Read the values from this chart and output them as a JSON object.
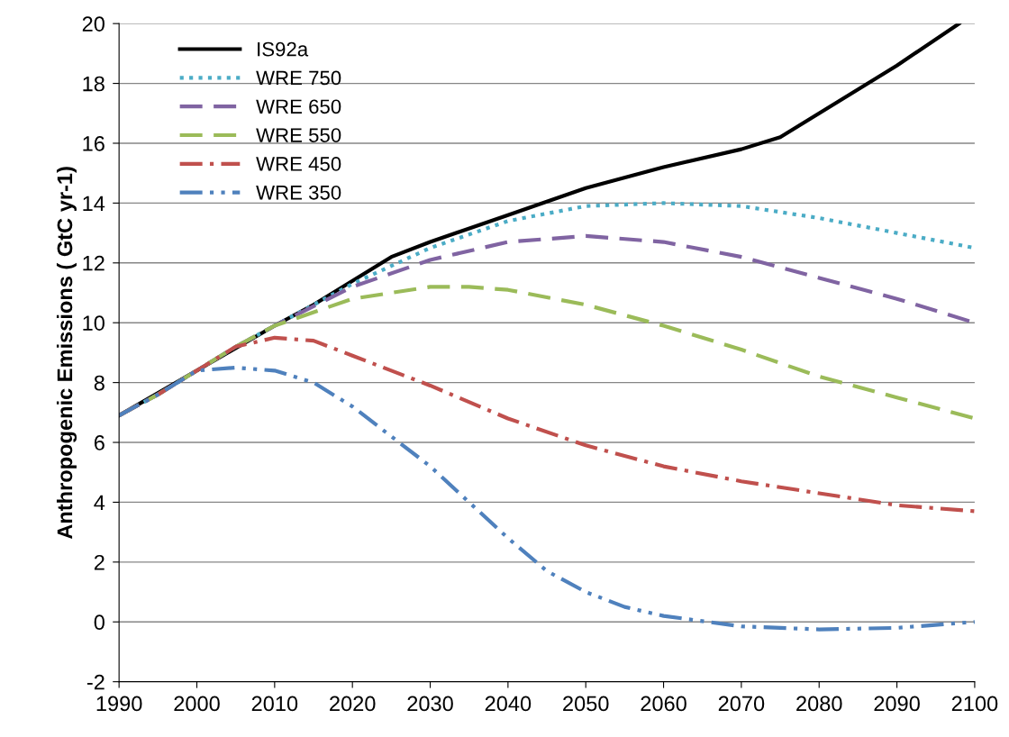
{
  "chart_data": {
    "type": "line",
    "ylabel": "Anthropogenic Emissions ( GtC yr-1)",
    "xlim": [
      1990,
      2100
    ],
    "xticks": [
      1990,
      2000,
      2010,
      2020,
      2030,
      2040,
      2050,
      2060,
      2070,
      2080,
      2090,
      2100
    ],
    "ylim": [
      -2,
      20
    ],
    "yticks": [
      -2,
      0,
      2,
      4,
      6,
      8,
      10,
      12,
      14,
      16,
      18,
      20
    ],
    "grid": "y",
    "legend": "top left",
    "marker": "none",
    "series": [
      {
        "name": "IS92a",
        "color": "#000000",
        "line_style": "solid",
        "x": [
          1990,
          2010,
          2015,
          2020,
          2025,
          2030,
          2040,
          2050,
          2060,
          2070,
          2075,
          2080,
          2090,
          2098
        ],
        "values": [
          6.9,
          9.9,
          10.6,
          11.4,
          12.2,
          12.7,
          13.6,
          14.5,
          15.2,
          15.8,
          16.2,
          17.0,
          18.6,
          20.0
        ]
      },
      {
        "name": "WRE 750",
        "color": "#4bacc6",
        "line_style": "dotted",
        "x": [
          1990,
          1995,
          2000,
          2005,
          2010,
          2020,
          2030,
          2040,
          2050,
          2060,
          2070,
          2080,
          2090,
          2100
        ],
        "values": [
          6.9,
          7.6,
          8.4,
          9.2,
          9.9,
          11.3,
          12.5,
          13.4,
          13.9,
          14.0,
          13.9,
          13.5,
          13.0,
          12.5
        ]
      },
      {
        "name": "WRE 650",
        "color": "#8064a2",
        "line_style": "dashed",
        "x": [
          1990,
          1995,
          2000,
          2005,
          2010,
          2020,
          2030,
          2040,
          2050,
          2060,
          2070,
          2080,
          2090,
          2100
        ],
        "values": [
          6.9,
          7.6,
          8.4,
          9.2,
          9.9,
          11.2,
          12.1,
          12.7,
          12.9,
          12.7,
          12.2,
          11.5,
          10.8,
          10.0
        ]
      },
      {
        "name": "WRE 550",
        "color": "#9bbb59",
        "line_style": "dashed",
        "x": [
          1990,
          1995,
          2000,
          2005,
          2010,
          2020,
          2030,
          2035,
          2040,
          2050,
          2060,
          2070,
          2080,
          2090,
          2100
        ],
        "values": [
          6.9,
          7.6,
          8.4,
          9.2,
          9.9,
          10.8,
          11.2,
          11.2,
          11.1,
          10.6,
          9.9,
          9.1,
          8.2,
          7.5,
          6.8
        ]
      },
      {
        "name": "WRE 450",
        "color": "#c0504d",
        "line_style": "dashdot",
        "x": [
          1990,
          1995,
          2000,
          2005,
          2010,
          2015,
          2020,
          2030,
          2040,
          2050,
          2060,
          2070,
          2080,
          2090,
          2100
        ],
        "values": [
          6.9,
          7.6,
          8.4,
          9.2,
          9.5,
          9.4,
          8.9,
          7.9,
          6.8,
          5.9,
          5.2,
          4.7,
          4.3,
          3.9,
          3.7
        ]
      },
      {
        "name": "WRE 350",
        "color": "#4f81bd",
        "line_style": "dashdotdot",
        "x": [
          1990,
          1995,
          2000,
          2005,
          2010,
          2015,
          2020,
          2030,
          2035,
          2040,
          2045,
          2050,
          2055,
          2060,
          2070,
          2080,
          2090,
          2100
        ],
        "values": [
          6.9,
          7.6,
          8.4,
          8.5,
          8.4,
          8.0,
          7.2,
          5.2,
          4.0,
          2.8,
          1.7,
          1.0,
          0.5,
          0.2,
          -0.15,
          -0.25,
          -0.2,
          0.0
        ]
      }
    ]
  }
}
